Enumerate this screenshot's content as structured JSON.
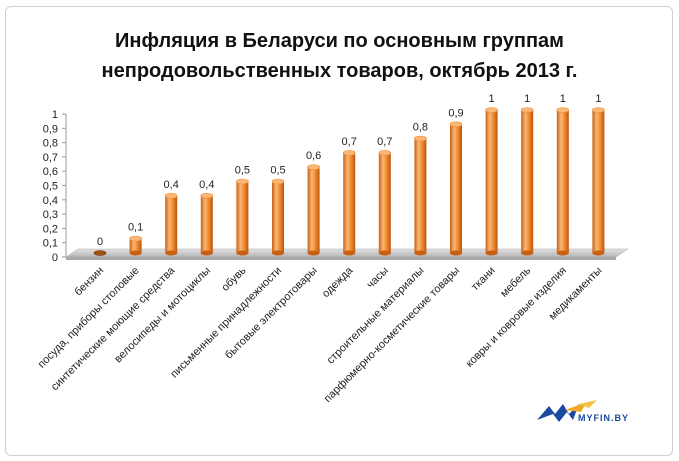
{
  "chart_data": {
    "type": "bar",
    "title_line1": "Инфляция в Беларуси по основным группам",
    "title_line2": "непродовольственных товаров, октябрь 2013 г.",
    "categories": [
      "бензин",
      "посуда, приборы столовые",
      "синтетические моющие средства",
      "велосипеды и мотоциклы",
      "обувь",
      "письменные принадлежности",
      "бытовые электротовары",
      "одежда",
      "часы",
      "строительные материалы",
      "парфюмерно-косметические товары",
      "ткани",
      "мебель",
      "ковры и ковровые изделия",
      "медикаменты"
    ],
    "values": [
      0,
      0.1,
      0.4,
      0.4,
      0.5,
      0.5,
      0.6,
      0.7,
      0.7,
      0.8,
      0.9,
      1,
      1,
      1,
      1
    ],
    "value_labels": [
      "0",
      "0,1",
      "0,4",
      "0,4",
      "0,5",
      "0,5",
      "0,6",
      "0,7",
      "0,7",
      "0,8",
      "0,9",
      "1",
      "1",
      "1",
      "1"
    ],
    "yticks": [
      "0",
      "0,1",
      "0,2",
      "0,3",
      "0,4",
      "0,5",
      "0,6",
      "0,7",
      "0,8",
      "0,9",
      "1"
    ],
    "ylim": [
      0,
      1
    ],
    "xlabel": "",
    "ylabel": "",
    "bar_color": "#f28a2e",
    "bar_color_dark": "#c95f12",
    "bar_color_light": "#f9b878",
    "floor_color": "#c9c9c9",
    "grid": false
  },
  "logo": {
    "text": "MYFIN.BY"
  }
}
